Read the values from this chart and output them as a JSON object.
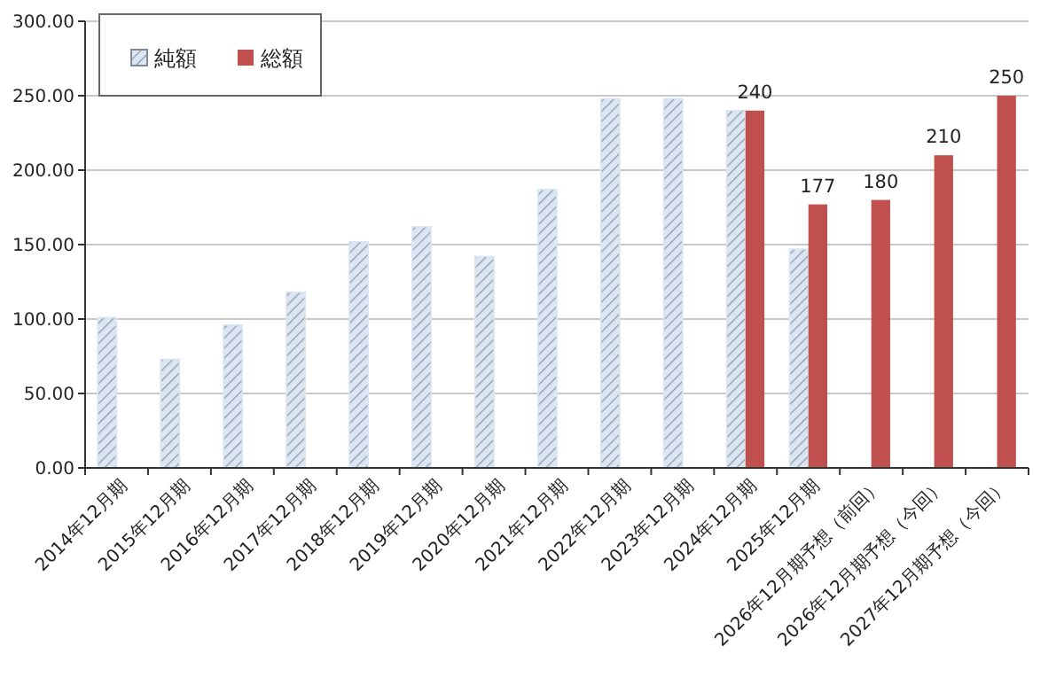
{
  "chart_data": {
    "type": "bar",
    "categories": [
      "2014年12月期",
      "2015年12月期",
      "2016年12月期",
      "2017年12月期",
      "2018年12月期",
      "2019年12月期",
      "2020年12月期",
      "2021年12月期",
      "2022年12月期",
      "2023年12月期",
      "2024年12月期",
      "2025年12月期",
      "2026年12月期予想（前回）",
      "2026年12月期予想（今回）",
      "2027年12月期予想（今回）"
    ],
    "series": [
      {
        "name": "純額",
        "color": "#dce6f2",
        "values": [
          101,
          73,
          96,
          118,
          152,
          162,
          142,
          187,
          248,
          248,
          240,
          147,
          null,
          null,
          null
        ]
      },
      {
        "name": "総額",
        "color": "#c0504d",
        "values": [
          null,
          null,
          null,
          null,
          null,
          null,
          null,
          null,
          null,
          null,
          240,
          177,
          180,
          210,
          250
        ],
        "value_labels": [
          null,
          null,
          null,
          null,
          null,
          null,
          null,
          null,
          null,
          null,
          "240",
          "177",
          "180",
          "210",
          "250"
        ]
      }
    ],
    "ylim": [
      0,
      300
    ],
    "yticks": [
      {
        "value": 0,
        "label": "0.00"
      },
      {
        "value": 50,
        "label": "50.00"
      },
      {
        "value": 100,
        "label": "100.00"
      },
      {
        "value": 150,
        "label": "150.00"
      },
      {
        "value": 200,
        "label": "200.00"
      },
      {
        "value": 250,
        "label": "250.00"
      },
      {
        "value": 300,
        "label": "300.00"
      }
    ],
    "grid": "y",
    "legend": "top left"
  }
}
